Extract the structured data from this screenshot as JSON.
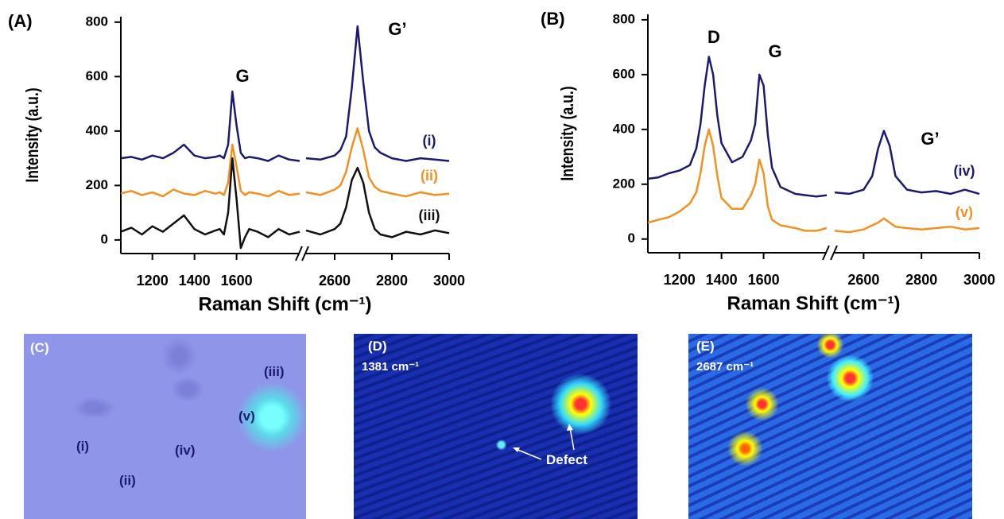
{
  "chart_data": [
    {
      "type": "line",
      "panel": "(A)",
      "x_label": "Raman Shift (cm⁻¹)",
      "y_label": "Intensity (a.u.)",
      "xlim": [
        1050,
        3000
      ],
      "xbreak": [
        1900,
        2500
      ],
      "ylim": [
        -50,
        820
      ],
      "xticks": [
        1200,
        1400,
        1600,
        2600,
        2800,
        3000
      ],
      "yticks": [
        0,
        200,
        400,
        600,
        800
      ],
      "annotations": [
        "G",
        "G’"
      ],
      "x": [
        1050,
        1100,
        1150,
        1200,
        1250,
        1300,
        1350,
        1400,
        1450,
        1500,
        1520,
        1540,
        1560,
        1580,
        1600,
        1620,
        1640,
        1660,
        1700,
        1750,
        1800,
        1850,
        1900,
        2500,
        2550,
        2600,
        2620,
        2640,
        2660,
        2680,
        2700,
        2720,
        2740,
        2760,
        2800,
        2850,
        2900,
        2950,
        3000
      ],
      "series": [
        {
          "name": "(i)",
          "color": "#1a1a6e",
          "values": [
            300,
            305,
            295,
            310,
            300,
            320,
            350,
            310,
            300,
            305,
            310,
            300,
            350,
            545,
            420,
            320,
            300,
            305,
            300,
            290,
            310,
            295,
            290,
            300,
            295,
            310,
            330,
            380,
            560,
            785,
            580,
            400,
            340,
            320,
            300,
            290,
            300,
            295,
            290
          ]
        },
        {
          "name": "(ii)",
          "color": "#f39020",
          "values": [
            170,
            180,
            165,
            175,
            160,
            185,
            170,
            165,
            180,
            170,
            175,
            165,
            210,
            350,
            270,
            180,
            165,
            175,
            170,
            160,
            180,
            165,
            170,
            175,
            165,
            185,
            200,
            250,
            340,
            410,
            330,
            230,
            195,
            180,
            170,
            160,
            175,
            165,
            170
          ]
        },
        {
          "name": "(iii)",
          "color": "#111111",
          "values": [
            30,
            45,
            20,
            50,
            30,
            60,
            90,
            40,
            20,
            35,
            40,
            20,
            100,
            300,
            150,
            -30,
            10,
            40,
            30,
            10,
            40,
            20,
            30,
            35,
            20,
            40,
            60,
            120,
            220,
            265,
            210,
            100,
            40,
            20,
            10,
            30,
            20,
            35,
            25
          ]
        }
      ]
    },
    {
      "type": "line",
      "panel": "(B)",
      "x_label": "Raman Shift (cm⁻¹)",
      "y_label": "Intensity (a.u.)",
      "xlim": [
        1050,
        3000
      ],
      "xbreak": [
        1900,
        2500
      ],
      "ylim": [
        -50,
        820
      ],
      "xticks": [
        1200,
        1400,
        1600,
        2600,
        2800,
        3000
      ],
      "yticks": [
        0,
        200,
        400,
        600,
        800
      ],
      "annotations": [
        "D",
        "G",
        "G’"
      ],
      "x": [
        1050,
        1100,
        1150,
        1200,
        1250,
        1280,
        1300,
        1320,
        1340,
        1360,
        1380,
        1400,
        1450,
        1500,
        1540,
        1560,
        1580,
        1600,
        1620,
        1640,
        1680,
        1750,
        1800,
        1850,
        1900,
        2500,
        2550,
        2600,
        2630,
        2650,
        2670,
        2690,
        2710,
        2750,
        2800,
        2850,
        2900,
        2950,
        3000
      ],
      "series": [
        {
          "name": "(iv)",
          "color": "#1a1a6e",
          "values": [
            220,
            225,
            240,
            250,
            270,
            330,
            420,
            560,
            665,
            600,
            450,
            350,
            280,
            300,
            360,
            420,
            600,
            560,
            380,
            260,
            190,
            165,
            160,
            155,
            160,
            170,
            165,
            180,
            230,
            330,
            395,
            340,
            230,
            180,
            170,
            175,
            165,
            180,
            165
          ]
        },
        {
          "name": "(v)",
          "color": "#f39020",
          "values": [
            60,
            70,
            80,
            100,
            130,
            170,
            240,
            340,
            400,
            340,
            230,
            150,
            110,
            110,
            160,
            200,
            290,
            240,
            120,
            70,
            50,
            40,
            30,
            30,
            40,
            30,
            25,
            35,
            50,
            60,
            75,
            60,
            45,
            40,
            35,
            40,
            45,
            35,
            40
          ]
        }
      ]
    }
  ],
  "images": [
    {
      "label": "(C)",
      "annotations": [
        "(iii)",
        "(v)",
        "(i)",
        "(iv)",
        "(ii)"
      ]
    },
    {
      "label": "(D)",
      "subtitle": "1381 cm⁻¹",
      "annotations": [
        "Defect"
      ]
    },
    {
      "label": "(E)",
      "subtitle": "2687 cm⁻¹"
    }
  ]
}
